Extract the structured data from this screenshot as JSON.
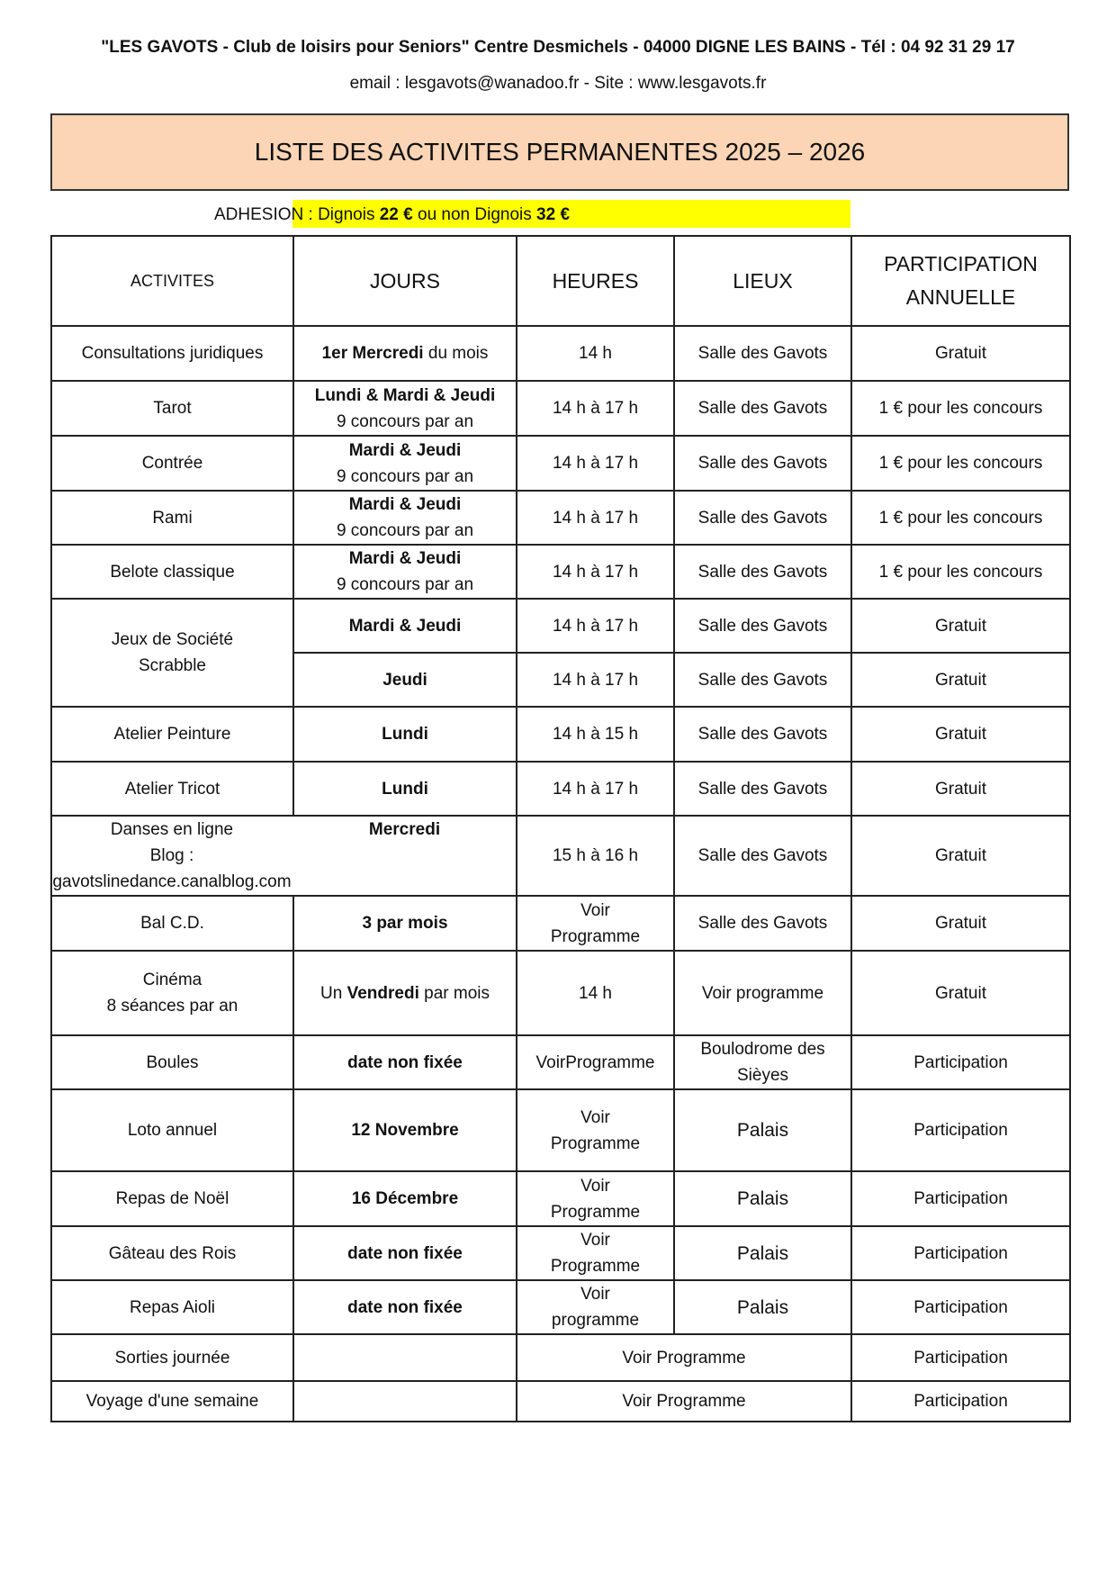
{
  "header": {
    "line1": "\"LES GAVOTS - Club de loisirs pour Seniors\" Centre Desmichels - 04000 DIGNE LES BAINS - Tél : 04 92 31 29 17",
    "line2": "email : lesgavots@wanadoo.fr - Site : www.lesgavots.fr"
  },
  "title": "LISTE DES ACTIVITES PERMANENTES 2025 – 2026",
  "adhesion": [
    {
      "text": "ADHESION : Dignois "
    },
    {
      "text": "22 €",
      "bold": true
    },
    {
      "text": " ou non Dignois "
    },
    {
      "text": "32 €",
      "bold": true
    }
  ],
  "colors": {
    "title_bg": "#fbd5b5",
    "highlight": "#ffff00"
  },
  "table": {
    "columns": [
      "ACTIVITES",
      "JOURS",
      "HEURES",
      "LIEUX",
      "PARTICIPATION ANNUELLE"
    ],
    "rows": [
      {
        "activite": [
          [
            {
              "text": "Consultations juridiques"
            }
          ]
        ],
        "jours": [
          [
            {
              "text": "1er Mercredi",
              "bold": true
            },
            {
              "text": " du mois"
            }
          ]
        ],
        "heures": [
          [
            {
              "text": "14 h"
            }
          ]
        ],
        "lieux": [
          [
            {
              "text": "Salle des Gavots"
            }
          ]
        ],
        "participation": [
          [
            {
              "text": "Gratuit"
            }
          ]
        ]
      },
      {
        "activite": [
          [
            {
              "text": "Tarot"
            }
          ]
        ],
        "jours": [
          [
            {
              "text": "Lundi & Mardi & Jeudi",
              "bold": true
            }
          ],
          [
            {
              "text": "9 concours par an"
            }
          ]
        ],
        "heures": [
          [
            {
              "text": "14 h à 17 h"
            }
          ]
        ],
        "lieux": [
          [
            {
              "text": "Salle des Gavots"
            }
          ]
        ],
        "participation": [
          [
            {
              "text": "1 € pour les concours"
            }
          ]
        ]
      },
      {
        "activite": [
          [
            {
              "text": "Contrée"
            }
          ]
        ],
        "jours": [
          [
            {
              "text": "Mardi & Jeudi",
              "bold": true
            }
          ],
          [
            {
              "text": "9 concours par an"
            }
          ]
        ],
        "heures": [
          [
            {
              "text": "14 h à 17 h"
            }
          ]
        ],
        "lieux": [
          [
            {
              "text": "Salle des Gavots"
            }
          ]
        ],
        "participation": [
          [
            {
              "text": "1 € pour les concours"
            }
          ]
        ]
      },
      {
        "activite": [
          [
            {
              "text": "Rami"
            }
          ]
        ],
        "jours": [
          [
            {
              "text": "Mardi & Jeudi",
              "bold": true
            }
          ],
          [
            {
              "text": "9 concours par an"
            }
          ]
        ],
        "heures": [
          [
            {
              "text": "14 h à 17 h"
            }
          ]
        ],
        "lieux": [
          [
            {
              "text": "Salle des Gavots"
            }
          ]
        ],
        "participation": [
          [
            {
              "text": "1 € pour les concours"
            }
          ]
        ]
      },
      {
        "activite": [
          [
            {
              "text": "Belote classique"
            }
          ]
        ],
        "jours": [
          [
            {
              "text": "Mardi & Jeudi",
              "bold": true
            }
          ],
          [
            {
              "text": "9 concours par an"
            }
          ]
        ],
        "heures": [
          [
            {
              "text": "14 h à 17 h"
            }
          ]
        ],
        "lieux": [
          [
            {
              "text": "Salle des Gavots"
            }
          ]
        ],
        "participation": [
          [
            {
              "text": "1 € pour les concours"
            }
          ]
        ]
      },
      {
        "activite": [
          [
            {
              "text": "Jeux de Société"
            }
          ],
          [
            {
              "text": "Scrabble"
            }
          ]
        ],
        "activite_rowspan": 2,
        "jours": [
          [
            {
              "text": "Mardi & Jeudi",
              "bold": true
            }
          ]
        ],
        "heures": [
          [
            {
              "text": "14 h à 17 h"
            }
          ]
        ],
        "lieux": [
          [
            {
              "text": "Salle des Gavots"
            }
          ]
        ],
        "participation": [
          [
            {
              "text": "Gratuit"
            }
          ]
        ]
      },
      {
        "jours": [
          [
            {
              "text": "Jeudi",
              "bold": true
            }
          ]
        ],
        "heures": [
          [
            {
              "text": "14 h à 17 h"
            }
          ]
        ],
        "lieux": [
          [
            {
              "text": "Salle des Gavots"
            }
          ]
        ],
        "participation": [
          [
            {
              "text": "Gratuit"
            }
          ]
        ]
      },
      {
        "activite": [
          [
            {
              "text": "Atelier Peinture"
            }
          ]
        ],
        "jours": [
          [
            {
              "text": "Lundi",
              "bold": true
            }
          ]
        ],
        "heures": [
          [
            {
              "text": "14 h à 15 h"
            }
          ]
        ],
        "lieux": [
          [
            {
              "text": "Salle des Gavots"
            }
          ]
        ],
        "participation": [
          [
            {
              "text": "Gratuit"
            }
          ]
        ]
      },
      {
        "activite": [
          [
            {
              "text": "Atelier Tricot"
            }
          ]
        ],
        "jours": [
          [
            {
              "text": "Lundi",
              "bold": true
            }
          ]
        ],
        "heures": [
          [
            {
              "text": "14 h à 17 h"
            }
          ]
        ],
        "lieux": [
          [
            {
              "text": "Salle des Gavots"
            }
          ]
        ],
        "participation": [
          [
            {
              "text": "Gratuit"
            }
          ]
        ]
      },
      {
        "activite": [
          [
            {
              "text": "Danses en ligne"
            }
          ],
          [
            {
              "text": "Blog : gavotslinedance.canalblog.com"
            }
          ]
        ],
        "merged_left": true,
        "jours": [
          [
            {
              "text": "Mercredi",
              "bold": true
            }
          ]
        ],
        "heures": [
          [
            {
              "text": "15 h à 16 h"
            }
          ]
        ],
        "lieux": [
          [
            {
              "text": "Salle des Gavots"
            }
          ]
        ],
        "participation": [
          [
            {
              "text": "Gratuit"
            }
          ]
        ]
      },
      {
        "activite": [
          [
            {
              "text": "Bal C.D."
            }
          ]
        ],
        "jours": [
          [
            {
              "text": "3 par mois",
              "bold": true
            }
          ]
        ],
        "heures": [
          [
            {
              "text": "Voir"
            }
          ],
          [
            {
              "text": "Programme"
            }
          ]
        ],
        "lieux": [
          [
            {
              "text": "Salle des Gavots"
            }
          ]
        ],
        "participation": [
          [
            {
              "text": "Gratuit"
            }
          ]
        ]
      },
      {
        "activite": [
          [
            {
              "text": "Cinéma"
            }
          ],
          [
            {
              "text": "8 séances par an"
            }
          ]
        ],
        "jours": [
          [
            {
              "text": "Un "
            },
            {
              "text": "Vendredi",
              "bold": true
            },
            {
              "text": " par mois"
            }
          ]
        ],
        "heures": [
          [
            {
              "text": "14 h"
            }
          ]
        ],
        "lieux": [
          [
            {
              "text": "Voir programme"
            }
          ]
        ],
        "participation": [
          [
            {
              "text": "Gratuit"
            }
          ]
        ]
      },
      {
        "activite": [
          [
            {
              "text": "Boules"
            }
          ]
        ],
        "jours": [
          [
            {
              "text": "date non fixée",
              "bold": true
            }
          ]
        ],
        "heures": [
          [
            {
              "text": "VoirProgramme"
            }
          ]
        ],
        "lieux": [
          [
            {
              "text": "Boulodrome des"
            }
          ],
          [
            {
              "text": "Sièyes"
            }
          ]
        ],
        "participation": [
          [
            {
              "text": "Participation"
            }
          ]
        ]
      },
      {
        "activite": [
          [
            {
              "text": "Loto annuel"
            }
          ]
        ],
        "jours": [
          [
            {
              "text": "12 Novembre",
              "bold": true
            }
          ]
        ],
        "heures": [
          [
            {
              "text": "Voir"
            }
          ],
          [
            {
              "text": "Programme"
            }
          ]
        ],
        "lieux": [
          [
            {
              "text": "Palais"
            }
          ]
        ],
        "lieux_big": true,
        "participation": [
          [
            {
              "text": "Participation"
            }
          ]
        ]
      },
      {
        "activite": [
          [
            {
              "text": "Repas de Noël"
            }
          ]
        ],
        "jours": [
          [
            {
              "text": "16 Décembre",
              "bold": true
            }
          ]
        ],
        "heures": [
          [
            {
              "text": "Voir"
            }
          ],
          [
            {
              "text": "Programme"
            }
          ]
        ],
        "lieux": [
          [
            {
              "text": "Palais"
            }
          ]
        ],
        "lieux_big": true,
        "participation": [
          [
            {
              "text": "Participation"
            }
          ]
        ]
      },
      {
        "activite": [
          [
            {
              "text": "Gâteau des Rois"
            }
          ]
        ],
        "jours": [
          [
            {
              "text": "date non fixée",
              "bold": true
            }
          ]
        ],
        "heures": [
          [
            {
              "text": "Voir"
            }
          ],
          [
            {
              "text": "Programme"
            }
          ]
        ],
        "lieux": [
          [
            {
              "text": "Palais"
            }
          ]
        ],
        "lieux_big": true,
        "participation": [
          [
            {
              "text": "Participation"
            }
          ]
        ]
      },
      {
        "activite": [
          [
            {
              "text": "Repas Aioli"
            }
          ]
        ],
        "jours": [
          [
            {
              "text": "date non fixée",
              "bold": true
            }
          ]
        ],
        "heures": [
          [
            {
              "text": "Voir"
            }
          ],
          [
            {
              "text": "programme"
            }
          ]
        ],
        "lieux": [
          [
            {
              "text": "Palais"
            }
          ]
        ],
        "lieux_big": true,
        "participation": [
          [
            {
              "text": "Participation"
            }
          ]
        ]
      },
      {
        "activite": [
          [
            {
              "text": "Sorties journée"
            }
          ]
        ],
        "jours": [],
        "heures_lieux": [
          [
            {
              "text": "Voir Programme"
            }
          ]
        ],
        "participation": [
          [
            {
              "text": "Participation"
            }
          ]
        ]
      },
      {
        "activite": [
          [
            {
              "text": "Voyage d'une semaine"
            }
          ]
        ],
        "jours": [],
        "heures_lieux": [
          [
            {
              "text": "Voir Programme"
            }
          ]
        ],
        "participation": [
          [
            {
              "text": "Participation"
            }
          ]
        ]
      }
    ]
  }
}
